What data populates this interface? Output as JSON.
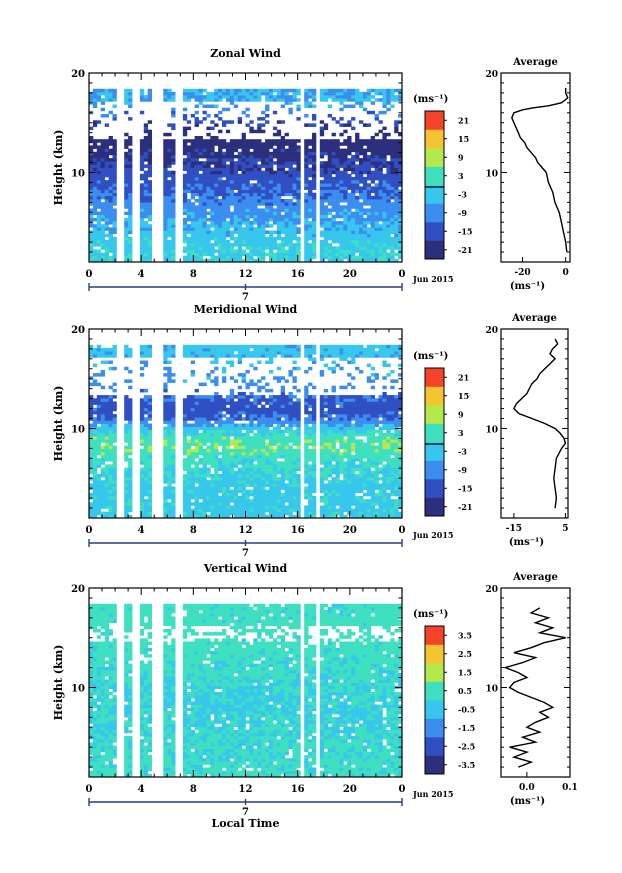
{
  "chart_data": [
    {
      "type": "heatmap",
      "title": "Zonal Wind",
      "ylabel": "Height (km)",
      "xlabel": "",
      "xlim": [
        0,
        24
      ],
      "ylim": [
        1,
        20
      ],
      "xticks": [
        "0",
        "4",
        "8",
        "12",
        "16",
        "20",
        "0"
      ],
      "yticks": [
        "20",
        "10"
      ],
      "date_axis": {
        "day": "7",
        "label": "Jun 2015"
      },
      "colorbar": {
        "unit": "(ms⁻¹)",
        "ticks": [
          "21",
          "15",
          "9",
          "3",
          "-3",
          "-9",
          "-15",
          "-21"
        ],
        "range": [
          -24,
          24
        ]
      },
      "profile_by_height": [
        {
          "h": 2,
          "v": -1
        },
        {
          "h": 3,
          "v": -2
        },
        {
          "h": 4,
          "v": -4
        },
        {
          "h": 5,
          "v": -6
        },
        {
          "h": 6,
          "v": -8
        },
        {
          "h": 7,
          "v": -10
        },
        {
          "h": 8,
          "v": -12
        },
        {
          "h": 9,
          "v": -14
        },
        {
          "h": 10,
          "v": -16
        },
        {
          "h": 11,
          "v": -18
        },
        {
          "h": 12,
          "v": -20
        },
        {
          "h": 13,
          "v": -22
        },
        {
          "h": 14,
          "v": -21
        },
        {
          "h": 15,
          "v": -17
        },
        {
          "h": 16,
          "v": -11
        },
        {
          "h": 17,
          "v": -6
        }
      ],
      "average": {
        "title": "Average",
        "xlabel": "(ms⁻¹)",
        "xticks": [
          "-20",
          "0"
        ],
        "xlim": [
          -30,
          2
        ],
        "x": [
          0.5,
          0,
          -1,
          -2,
          -3,
          -5,
          -6,
          -8,
          -9,
          -11,
          -13,
          -14,
          -16,
          -18,
          -19,
          -21,
          -22,
          -23,
          -24,
          -25,
          -24,
          -20,
          -15,
          -8,
          -2,
          1,
          0,
          0
        ],
        "y": [
          2,
          3,
          4,
          5,
          6,
          7,
          8,
          9,
          10,
          10.5,
          11,
          11.5,
          12,
          12.5,
          13,
          13.5,
          14,
          14.5,
          15,
          15.5,
          16,
          16.3,
          16.5,
          16.7,
          17,
          17.5,
          18,
          18.5
        ]
      }
    },
    {
      "type": "heatmap",
      "title": "Meridional Wind",
      "ylabel": "Height (km)",
      "xlabel": "",
      "xlim": [
        0,
        24
      ],
      "ylim": [
        1,
        20
      ],
      "xticks": [
        "0",
        "4",
        "8",
        "12",
        "16",
        "20",
        "0"
      ],
      "yticks": [
        "20",
        "10"
      ],
      "date_axis": {
        "day": "7",
        "label": "Jun 2015"
      },
      "colorbar": {
        "unit": "(ms⁻¹)",
        "ticks": [
          "21",
          "15",
          "9",
          "3",
          "-3",
          "-9",
          "-15",
          "-21"
        ],
        "range": [
          -24,
          24
        ]
      },
      "profile_by_height": [
        {
          "h": 2,
          "v": -2
        },
        {
          "h": 3,
          "v": -2
        },
        {
          "h": 4,
          "v": -2
        },
        {
          "h": 5,
          "v": -1
        },
        {
          "h": 6,
          "v": 0
        },
        {
          "h": 7,
          "v": 2
        },
        {
          "h": 8,
          "v": 5
        },
        {
          "h": 9,
          "v": 4
        },
        {
          "h": 10,
          "v": -3
        },
        {
          "h": 11,
          "v": -12
        },
        {
          "h": 12,
          "v": -15
        },
        {
          "h": 13,
          "v": -13
        },
        {
          "h": 14,
          "v": -10
        },
        {
          "h": 15,
          "v": -8
        },
        {
          "h": 16,
          "v": -6
        },
        {
          "h": 17,
          "v": -4
        }
      ],
      "average": {
        "title": "Average",
        "xlabel": "(ms⁻¹)",
        "xticks": [
          "-15",
          "5"
        ],
        "xlim": [
          -20,
          6
        ],
        "x": [
          1,
          1.5,
          1,
          0.5,
          1,
          1.5,
          2.5,
          3.5,
          5,
          4.5,
          3,
          1,
          -3,
          -8,
          -13,
          -15,
          -14,
          -12,
          -10,
          -9,
          -8,
          -6,
          -5,
          -3,
          -1,
          1,
          -1,
          0,
          2,
          1
        ],
        "y": [
          2,
          3,
          4,
          5,
          6,
          7,
          7.5,
          8,
          8.5,
          9,
          9.5,
          10,
          10.5,
          11,
          11.5,
          12,
          12.5,
          13,
          13.5,
          14,
          14.5,
          15,
          15.5,
          16,
          16.5,
          17,
          17.5,
          18,
          18.5,
          19
        ]
      }
    },
    {
      "type": "heatmap",
      "title": "Vertical Wind",
      "ylabel": "Height (km)",
      "xlabel": "Local Time",
      "xlim": [
        0,
        24
      ],
      "ylim": [
        1,
        20
      ],
      "xticks": [
        "0",
        "4",
        "8",
        "12",
        "16",
        "20",
        "0"
      ],
      "yticks": [
        "20",
        "10"
      ],
      "date_axis": {
        "day": "7",
        "label": "Jun 2015"
      },
      "colorbar": {
        "unit": "(ms⁻¹)",
        "ticks": [
          "3.5",
          "2.5",
          "1.5",
          "0.5",
          "-0.5",
          "-1.5",
          "-2.5",
          "-3.5"
        ],
        "range": [
          -4,
          4
        ]
      },
      "profile_by_height": [
        {
          "h": 2,
          "v": 0.2
        },
        {
          "h": 4,
          "v": 0.1
        },
        {
          "h": 6,
          "v": 0.0
        },
        {
          "h": 8,
          "v": -0.1
        },
        {
          "h": 10,
          "v": 0.0
        },
        {
          "h": 12,
          "v": 0.2
        },
        {
          "h": 14,
          "v": 0.3
        },
        {
          "h": 16,
          "v": 0.4
        },
        {
          "h": 18,
          "v": 0.3
        }
      ],
      "average": {
        "title": "Average",
        "xlabel": "(ms⁻¹)",
        "xticks": [
          "0.0",
          "0.1"
        ],
        "xlim": [
          -0.06,
          0.1
        ],
        "x": [
          -0.02,
          0.01,
          -0.03,
          0.0,
          -0.04,
          0.02,
          -0.01,
          0.03,
          0.0,
          0.02,
          0.05,
          0.03,
          0.06,
          0.04,
          0.01,
          -0.02,
          -0.04,
          -0.03,
          0.0,
          -0.02,
          -0.05,
          -0.01,
          0.02,
          -0.03,
          0.01,
          0.04,
          0.09,
          0.03,
          0.06,
          0.02,
          0.05,
          0.01,
          0.03
        ],
        "y": [
          2,
          2.5,
          3,
          3.5,
          4,
          4.5,
          5,
          5.5,
          6,
          6.5,
          7,
          7.5,
          8,
          8.5,
          9,
          9.5,
          10,
          10.5,
          11,
          11.5,
          12,
          12.5,
          13,
          13.5,
          14,
          14.5,
          15,
          15.5,
          16,
          16.5,
          17,
          17.5,
          18
        ]
      }
    }
  ]
}
